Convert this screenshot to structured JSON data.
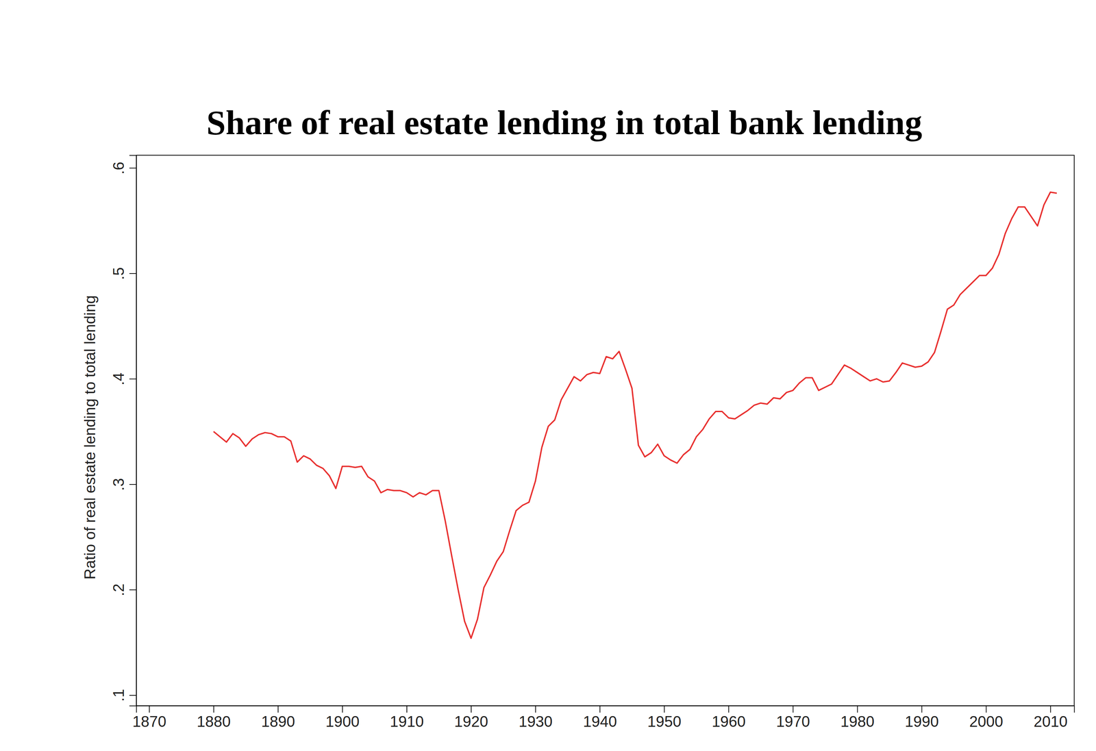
{
  "chart_data": {
    "type": "line",
    "title": "Share of real estate lending in total bank lending",
    "ylabel": "Ratio of real estate lending to total lending",
    "color": "#e8302f",
    "x": [
      1880,
      1881,
      1882,
      1883,
      1884,
      1885,
      1886,
      1887,
      1888,
      1889,
      1890,
      1891,
      1892,
      1893,
      1894,
      1895,
      1896,
      1897,
      1898,
      1899,
      1900,
      1901,
      1902,
      1903,
      1904,
      1905,
      1906,
      1907,
      1908,
      1909,
      1910,
      1911,
      1912,
      1913,
      1914,
      1915,
      1916,
      1917,
      1918,
      1919,
      1920,
      1921,
      1922,
      1923,
      1924,
      1925,
      1926,
      1927,
      1928,
      1929,
      1930,
      1931,
      1932,
      1933,
      1934,
      1935,
      1936,
      1937,
      1938,
      1939,
      1940,
      1941,
      1942,
      1943,
      1944,
      1945,
      1946,
      1947,
      1948,
      1949,
      1950,
      1951,
      1952,
      1953,
      1954,
      1955,
      1956,
      1957,
      1958,
      1959,
      1960,
      1961,
      1962,
      1963,
      1964,
      1965,
      1966,
      1967,
      1968,
      1969,
      1970,
      1971,
      1972,
      1973,
      1974,
      1975,
      1976,
      1977,
      1978,
      1979,
      1980,
      1981,
      1982,
      1983,
      1984,
      1985,
      1986,
      1987,
      1988,
      1989,
      1990,
      1991,
      1992,
      1993,
      1994,
      1995,
      1996,
      1997,
      1998,
      1999,
      2000,
      2001,
      2002,
      2003,
      2004,
      2005,
      2006,
      2007,
      2008,
      2009,
      2010,
      2011
    ],
    "values": [
      0.35,
      0.345,
      0.34,
      0.348,
      0.344,
      0.336,
      0.343,
      0.347,
      0.349,
      0.348,
      0.345,
      0.345,
      0.341,
      0.321,
      0.327,
      0.324,
      0.318,
      0.315,
      0.308,
      0.296,
      0.317,
      0.317,
      0.316,
      0.317,
      0.307,
      0.303,
      0.292,
      0.295,
      0.294,
      0.294,
      0.292,
      0.288,
      0.292,
      0.29,
      0.294,
      0.294,
      0.265,
      0.232,
      0.2,
      0.17,
      0.154,
      0.172,
      0.202,
      0.214,
      0.227,
      0.236,
      0.256,
      0.275,
      0.28,
      0.283,
      0.303,
      0.335,
      0.355,
      0.361,
      0.38,
      0.391,
      0.402,
      0.398,
      0.404,
      0.406,
      0.405,
      0.421,
      0.419,
      0.426,
      0.409,
      0.391,
      0.337,
      0.326,
      0.33,
      0.338,
      0.327,
      0.323,
      0.32,
      0.328,
      0.333,
      0.345,
      0.352,
      0.362,
      0.369,
      0.369,
      0.363,
      0.362,
      0.366,
      0.37,
      0.375,
      0.377,
      0.376,
      0.382,
      0.381,
      0.387,
      0.389,
      0.396,
      0.401,
      0.401,
      0.389,
      0.392,
      0.395,
      0.404,
      0.413,
      0.41,
      0.406,
      0.402,
      0.398,
      0.4,
      0.397,
      0.398,
      0.406,
      0.415,
      0.413,
      0.411,
      0.412,
      0.416,
      0.425,
      0.445,
      0.466,
      0.47,
      0.48,
      0.486,
      0.492,
      0.498,
      0.498,
      0.505,
      0.518,
      0.538,
      0.552,
      0.563,
      0.563,
      0.554,
      0.545,
      0.565,
      0.577,
      0.576
    ],
    "xlim": [
      1868,
      2013.7
    ],
    "ylim": [
      0.09,
      0.612
    ],
    "xticks": [
      1870,
      1880,
      1890,
      1900,
      1910,
      1920,
      1930,
      1940,
      1950,
      1960,
      1970,
      1980,
      1990,
      2000,
      2010
    ],
    "yticks": [
      {
        "value": 0.1,
        "label": ".1"
      },
      {
        "value": 0.2,
        "label": ".2"
      },
      {
        "value": 0.3,
        "label": ".3"
      },
      {
        "value": 0.4,
        "label": ".4"
      },
      {
        "value": 0.5,
        "label": ".5"
      },
      {
        "value": 0.6,
        "label": ".6"
      }
    ]
  }
}
